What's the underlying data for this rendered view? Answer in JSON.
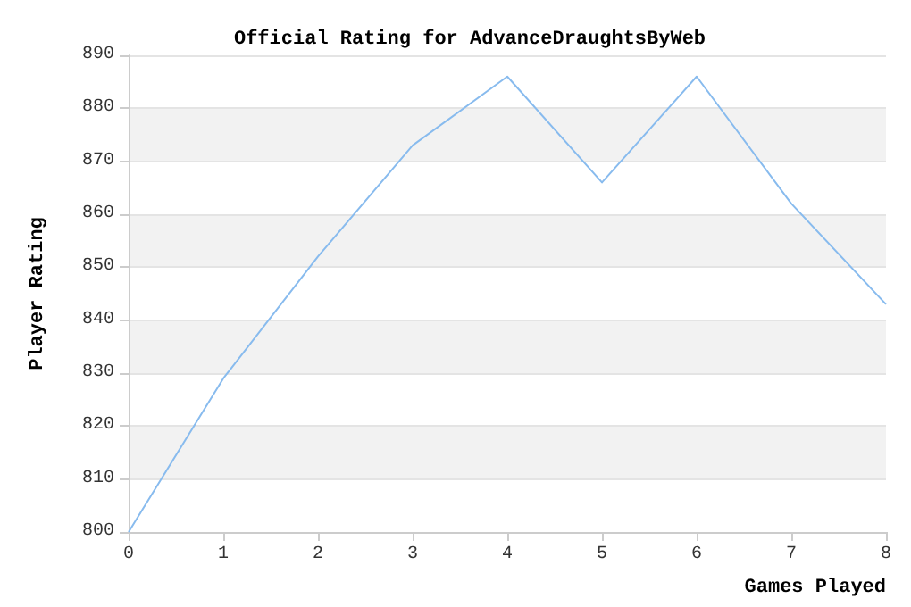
{
  "chart_data": {
    "type": "line",
    "title": "Official Rating for AdvanceDraughtsByWeb",
    "xlabel": "Games Played",
    "ylabel": "Player Rating",
    "x": [
      0,
      1,
      2,
      3,
      4,
      5,
      6,
      7,
      8
    ],
    "series": [
      {
        "color": "#88bbee",
        "values": [
          800,
          829,
          852,
          873,
          886,
          866,
          886,
          862,
          843
        ]
      }
    ],
    "xlim": [
      0,
      8
    ],
    "xticks": [
      0,
      1,
      2,
      3,
      4,
      5,
      6,
      7,
      8
    ],
    "ylim": [
      800,
      890
    ],
    "yticks": [
      800,
      810,
      820,
      830,
      840,
      850,
      860,
      870,
      880,
      890
    ],
    "grid": "y",
    "marker": "none",
    "line_style": "solid"
  }
}
